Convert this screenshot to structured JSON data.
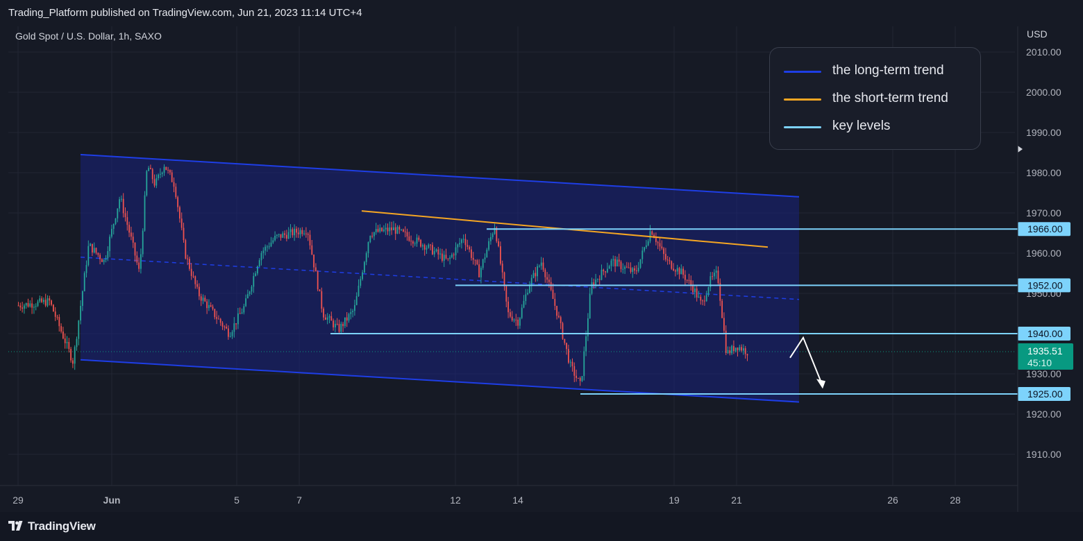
{
  "header": {
    "publish_text": "Trading_Platform published on TradingView.com, Jun 21, 2023 11:14 UTC+4"
  },
  "symbol": "Gold Spot / U.S. Dollar, 1h, SAXO",
  "currency": "USD",
  "legend": [
    {
      "label": "the long-term trend",
      "color": "#1e3ee6"
    },
    {
      "label": "the short-term trend",
      "color": "#f5a623"
    },
    {
      "label": "key levels",
      "color": "#7dd3fc"
    }
  ],
  "footer": {
    "brand": "TradingView"
  },
  "colors": {
    "background": "#161a25",
    "grid": "#222633",
    "bull": "#26a69a",
    "bear": "#ef5350",
    "channel_line": "#1e3ee6",
    "channel_fill": "#1a237e",
    "short_trend": "#f5a623",
    "key_level": "#7dd3fc",
    "current_price": "#089981"
  },
  "chart_data": {
    "type": "candlestick",
    "title": "Gold Spot / U.S. Dollar, 1h, SAXO",
    "x_tick_labels": [
      "29",
      "Jun",
      "5",
      "7",
      "12",
      "14",
      "19",
      "21",
      "26",
      "28"
    ],
    "y_tick_values": [
      1910,
      1920,
      1930,
      1940,
      1950,
      1960,
      1970,
      1980,
      1990,
      2000,
      2010
    ],
    "y_tick_labels": [
      "1910.00",
      "1920.00",
      "1930.00",
      "1940.00",
      "1950.00",
      "1960.00",
      "1970.00",
      "1980.00",
      "1990.00",
      "2000.00",
      "2010.00"
    ],
    "ylim": [
      1902,
      2016
    ],
    "grid": true,
    "price_path": [
      {
        "date": "2023-05-29",
        "price": 1947
      },
      {
        "date": "2023-05-30",
        "price": 1948
      },
      {
        "date": "2023-05-31",
        "price": 1933
      },
      {
        "date": "2023-05-31",
        "price": 1962
      },
      {
        "date": "2023-06-01",
        "price": 1958
      },
      {
        "date": "2023-06-01",
        "price": 1974
      },
      {
        "date": "2023-06-02",
        "price": 1963
      },
      {
        "date": "2023-06-02",
        "price": 1955
      },
      {
        "date": "2023-06-02",
        "price": 1982
      },
      {
        "date": "2023-06-02",
        "price": 1977
      },
      {
        "date": "2023-06-03",
        "price": 1982
      },
      {
        "date": "2023-06-03",
        "price": 1977
      },
      {
        "date": "2023-06-03",
        "price": 1960
      },
      {
        "date": "2023-06-04",
        "price": 1950
      },
      {
        "date": "2023-06-04",
        "price": 1945
      },
      {
        "date": "2023-06-05",
        "price": 1940
      },
      {
        "date": "2023-06-05",
        "price": 1947
      },
      {
        "date": "2023-06-06",
        "price": 1960
      },
      {
        "date": "2023-06-06",
        "price": 1964
      },
      {
        "date": "2023-06-07",
        "price": 1965
      },
      {
        "date": "2023-06-07",
        "price": 1966
      },
      {
        "date": "2023-06-08",
        "price": 1945
      },
      {
        "date": "2023-06-08",
        "price": 1941
      },
      {
        "date": "2023-06-09",
        "price": 1946
      },
      {
        "date": "2023-06-09",
        "price": 1965
      },
      {
        "date": "2023-06-10",
        "price": 1966
      },
      {
        "date": "2023-06-11",
        "price": 1962
      },
      {
        "date": "2023-06-12",
        "price": 1958
      },
      {
        "date": "2023-06-12",
        "price": 1964
      },
      {
        "date": "2023-06-13",
        "price": 1955
      },
      {
        "date": "2023-06-13",
        "price": 1967
      },
      {
        "date": "2023-06-14",
        "price": 1945
      },
      {
        "date": "2023-06-14",
        "price": 1943
      },
      {
        "date": "2023-06-14",
        "price": 1952
      },
      {
        "date": "2023-06-15",
        "price": 1958
      },
      {
        "date": "2023-06-15",
        "price": 1945
      },
      {
        "date": "2023-06-16",
        "price": 1932
      },
      {
        "date": "2023-06-16",
        "price": 1927
      },
      {
        "date": "2023-06-16",
        "price": 1952
      },
      {
        "date": "2023-06-17",
        "price": 1958
      },
      {
        "date": "2023-06-18",
        "price": 1955
      },
      {
        "date": "2023-06-18",
        "price": 1966
      },
      {
        "date": "2023-06-19",
        "price": 1958
      },
      {
        "date": "2023-06-19",
        "price": 1955
      },
      {
        "date": "2023-06-20",
        "price": 1951
      },
      {
        "date": "2023-06-20",
        "price": 1947
      },
      {
        "date": "2023-06-20",
        "price": 1953
      },
      {
        "date": "2023-06-20",
        "price": 1955
      },
      {
        "date": "2023-06-21",
        "price": 1935
      },
      {
        "date": "2023-06-21",
        "price": 1937
      },
      {
        "date": "2023-06-21",
        "price": 1935.5
      }
    ],
    "long_term_channel": {
      "upper": [
        {
          "date": "2023-05-31",
          "price": 1984.5
        },
        {
          "date": "2023-06-23",
          "price": 1974
        }
      ],
      "lower": [
        {
          "date": "2023-05-31",
          "price": 1933.5
        },
        {
          "date": "2023-06-23",
          "price": 1923
        }
      ],
      "mid": [
        {
          "date": "2023-05-31",
          "price": 1959
        },
        {
          "date": "2023-06-23",
          "price": 1948.5
        }
      ]
    },
    "short_term_trend": [
      {
        "date": "2023-06-09",
        "price": 1970.5
      },
      {
        "date": "2023-06-22",
        "price": 1961.5
      }
    ],
    "key_levels": [
      {
        "price": 1966,
        "label": "1966.00",
        "from": "2023-06-13"
      },
      {
        "price": 1952,
        "label": "1952.00",
        "from": "2023-06-12"
      },
      {
        "price": 1940,
        "label": "1940.00",
        "from": "2023-06-08"
      },
      {
        "price": 1925,
        "label": "1925.00",
        "from": "2023-06-16"
      }
    ],
    "projection": [
      {
        "date": "2023-06-21",
        "price": 1934
      },
      {
        "date": "2023-06-22",
        "price": 1939
      },
      {
        "date": "2023-06-22",
        "price": 1927
      }
    ],
    "current_price": {
      "value": 1935.51,
      "label": "1935.51",
      "countdown": "45:10"
    }
  }
}
